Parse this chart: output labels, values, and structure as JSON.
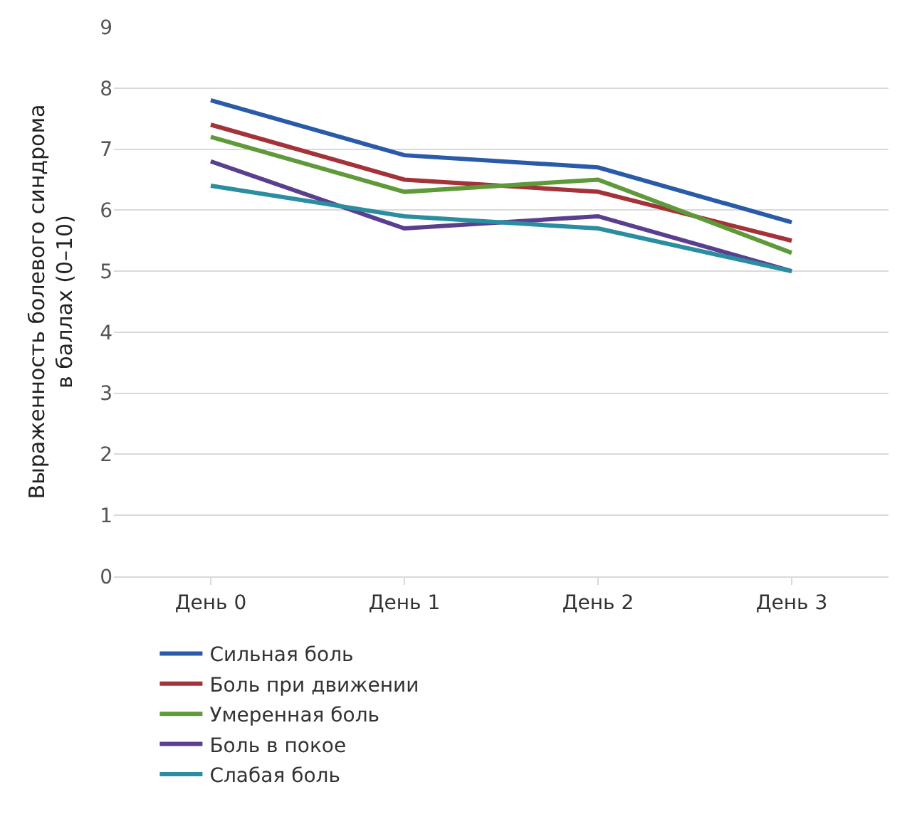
{
  "chart_data": {
    "type": "line",
    "ylabel": "Выраженность болевого синдрома\nв баллах (0–10)",
    "categories": [
      "День 0",
      "День 1",
      "День 2",
      "День 3"
    ],
    "series": [
      {
        "name": "Сильная боль",
        "color": "#2a5ba8",
        "values": [
          7.8,
          6.9,
          6.7,
          5.8
        ]
      },
      {
        "name": "Боль при движении",
        "color": "#a33338",
        "values": [
          7.4,
          6.5,
          6.3,
          5.5
        ]
      },
      {
        "name": "Умеренная боль",
        "color": "#5f9a3a",
        "values": [
          7.2,
          6.3,
          6.5,
          5.3
        ]
      },
      {
        "name": "Боль в покое",
        "color": "#5a3f8f",
        "values": [
          6.8,
          5.7,
          5.9,
          5.0
        ]
      },
      {
        "name": "Слабая боль",
        "color": "#2a8ea0",
        "values": [
          6.4,
          5.9,
          5.7,
          5.0
        ]
      }
    ],
    "ylim": [
      0,
      9
    ],
    "yticks": [
      0,
      1,
      2,
      3,
      4,
      5,
      6,
      7,
      8,
      9
    ],
    "grid": "y",
    "legend": "bottom",
    "marker": "none",
    "line_style": "solid"
  }
}
